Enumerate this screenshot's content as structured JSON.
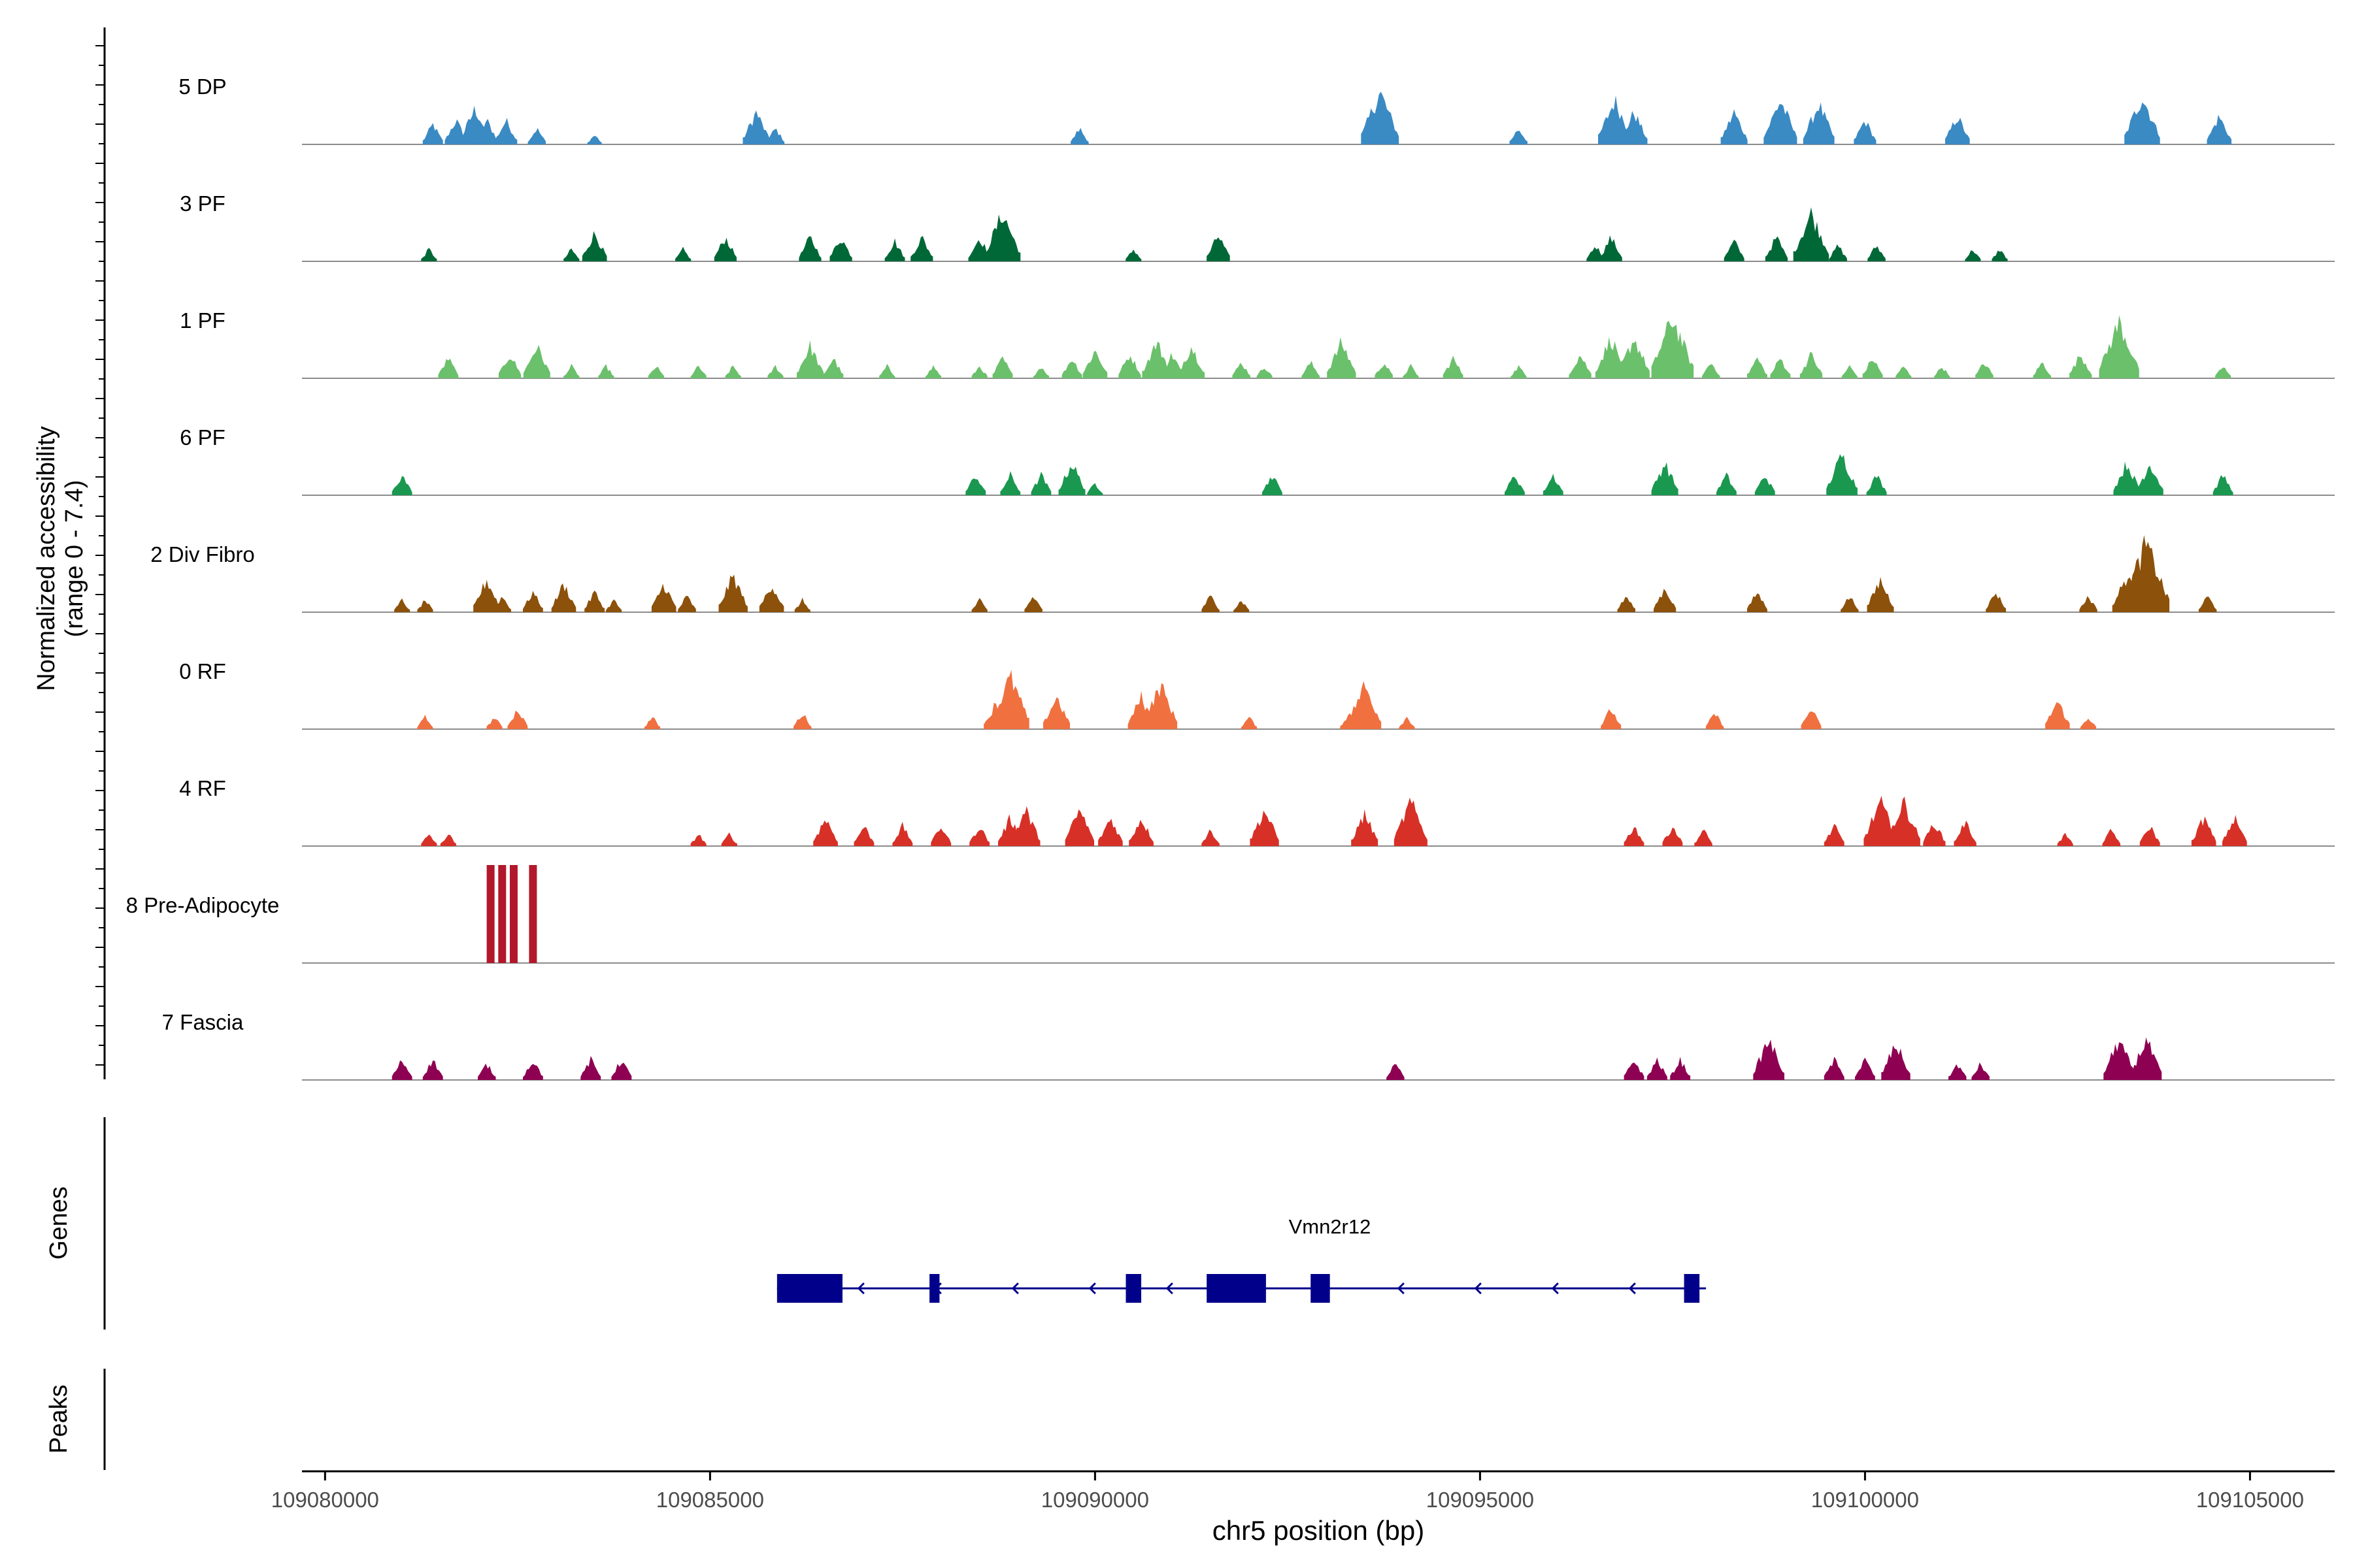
{
  "chart_data": {
    "type": "area",
    "title": "",
    "ylabel_line1": "Normalized accessibility",
    "ylabel_line2": "(range 0 - 7.4)",
    "xlabel": "chr5 position (bp)",
    "xlim": [
      109079700,
      109106100
    ],
    "x_ticks": [
      109080000,
      109085000,
      109090000,
      109095000,
      109100000,
      109105000
    ],
    "x_tick_labels": [
      "109080000",
      "109085000",
      "109090000",
      "109095000",
      "109100000",
      "109105000"
    ],
    "y_range": [
      0,
      7.4
    ],
    "tracks": [
      {
        "name": "5 DP",
        "color": "#3A8AC4",
        "peaks": [
          [
            109081400,
            0.25
          ],
          [
            109081700,
            0.3
          ],
          [
            109081950,
            0.45
          ],
          [
            109082100,
            0.3
          ],
          [
            109082350,
            0.3
          ],
          [
            109082750,
            0.2
          ],
          [
            109083500,
            0.12
          ],
          [
            109085600,
            0.4
          ],
          [
            109085850,
            0.2
          ],
          [
            109089800,
            0.2
          ],
          [
            109093700,
            0.65
          ],
          [
            109095500,
            0.2
          ],
          [
            109096750,
            0.55
          ],
          [
            109097000,
            0.4
          ],
          [
            109098300,
            0.4
          ],
          [
            109098900,
            0.55
          ],
          [
            109099400,
            0.5
          ],
          [
            109100000,
            0.3
          ],
          [
            109101200,
            0.35
          ],
          [
            109103600,
            0.6
          ],
          [
            109104600,
            0.35
          ]
        ]
      },
      {
        "name": "3 PF",
        "color": "#006837",
        "peaks": [
          [
            109081350,
            0.15
          ],
          [
            109083200,
            0.15
          ],
          [
            109083500,
            0.35
          ],
          [
            109084650,
            0.15
          ],
          [
            109085200,
            0.3
          ],
          [
            109086300,
            0.3
          ],
          [
            109086700,
            0.3
          ],
          [
            109087400,
            0.25
          ],
          [
            109087750,
            0.3
          ],
          [
            109088500,
            0.3
          ],
          [
            109088800,
            0.6
          ],
          [
            109090500,
            0.15
          ],
          [
            109091600,
            0.32
          ],
          [
            109096500,
            0.2
          ],
          [
            109096700,
            0.3
          ],
          [
            109098300,
            0.25
          ],
          [
            109098850,
            0.3
          ],
          [
            109099300,
            0.6
          ],
          [
            109099650,
            0.2
          ],
          [
            109100150,
            0.2
          ],
          [
            109101400,
            0.15
          ],
          [
            109101750,
            0.15
          ]
        ]
      },
      {
        "name": "1 PF",
        "color": "#6BC06B",
        "peaks": [
          [
            109081600,
            0.25
          ],
          [
            109082400,
            0.3
          ],
          [
            109082750,
            0.4
          ],
          [
            109083200,
            0.15
          ],
          [
            109083650,
            0.15
          ],
          [
            109084300,
            0.15
          ],
          [
            109084850,
            0.15
          ],
          [
            109085300,
            0.15
          ],
          [
            109085850,
            0.15
          ],
          [
            109086300,
            0.4
          ],
          [
            109086600,
            0.25
          ],
          [
            109087300,
            0.15
          ],
          [
            109087900,
            0.15
          ],
          [
            109088500,
            0.15
          ],
          [
            109088800,
            0.25
          ],
          [
            109089300,
            0.15
          ],
          [
            109089700,
            0.25
          ],
          [
            109090000,
            0.35
          ],
          [
            109090450,
            0.3
          ],
          [
            109090800,
            0.45
          ],
          [
            109091000,
            0.3
          ],
          [
            109091250,
            0.4
          ],
          [
            109091900,
            0.2
          ],
          [
            109092200,
            0.15
          ],
          [
            109092800,
            0.2
          ],
          [
            109093200,
            0.45
          ],
          [
            109093750,
            0.2
          ],
          [
            109094100,
            0.15
          ],
          [
            109094650,
            0.25
          ],
          [
            109095500,
            0.15
          ],
          [
            109096300,
            0.3
          ],
          [
            109096700,
            0.5
          ],
          [
            109097000,
            0.5
          ],
          [
            109097500,
            0.75
          ],
          [
            109098000,
            0.2
          ],
          [
            109098600,
            0.25
          ],
          [
            109098900,
            0.25
          ],
          [
            109099300,
            0.3
          ],
          [
            109099800,
            0.15
          ],
          [
            109100100,
            0.25
          ],
          [
            109100500,
            0.15
          ],
          [
            109101000,
            0.15
          ],
          [
            109101550,
            0.2
          ],
          [
            109102300,
            0.2
          ],
          [
            109102800,
            0.3
          ],
          [
            109103300,
            0.7
          ],
          [
            109104650,
            0.15
          ]
        ]
      },
      {
        "name": "6 PF",
        "color": "#1A9850",
        "peaks": [
          [
            109081000,
            0.25
          ],
          [
            109088450,
            0.25
          ],
          [
            109088900,
            0.25
          ],
          [
            109089300,
            0.25
          ],
          [
            109089700,
            0.4
          ],
          [
            109090000,
            0.15
          ],
          [
            109092300,
            0.25
          ],
          [
            109095450,
            0.25
          ],
          [
            109095950,
            0.25
          ],
          [
            109097400,
            0.4
          ],
          [
            109098200,
            0.25
          ],
          [
            109098700,
            0.25
          ],
          [
            109099700,
            0.5
          ],
          [
            109100150,
            0.25
          ],
          [
            109103400,
            0.4
          ],
          [
            109103700,
            0.4
          ],
          [
            109104650,
            0.25
          ]
        ]
      },
      {
        "name": "2 Div Fibro",
        "color": "#8C510A",
        "peaks": [
          [
            109081000,
            0.15
          ],
          [
            109081300,
            0.15
          ],
          [
            109082100,
            0.4
          ],
          [
            109082300,
            0.2
          ],
          [
            109082700,
            0.25
          ],
          [
            109083100,
            0.35
          ],
          [
            109083500,
            0.25
          ],
          [
            109083750,
            0.15
          ],
          [
            109084400,
            0.35
          ],
          [
            109084700,
            0.2
          ],
          [
            109085300,
            0.45
          ],
          [
            109085800,
            0.35
          ],
          [
            109086200,
            0.15
          ],
          [
            109088500,
            0.15
          ],
          [
            109089200,
            0.2
          ],
          [
            109091500,
            0.2
          ],
          [
            109091900,
            0.15
          ],
          [
            109096900,
            0.2
          ],
          [
            109097400,
            0.3
          ],
          [
            109098600,
            0.25
          ],
          [
            109099800,
            0.2
          ],
          [
            109100200,
            0.4
          ],
          [
            109101700,
            0.25
          ],
          [
            109102900,
            0.2
          ],
          [
            109103400,
            0.45
          ],
          [
            109103650,
            0.85
          ],
          [
            109104450,
            0.2
          ]
        ]
      },
      {
        "name": "0 RF",
        "color": "#F07040",
        "peaks": [
          [
            109081300,
            0.15
          ],
          [
            109082200,
            0.15
          ],
          [
            109082500,
            0.25
          ],
          [
            109084250,
            0.15
          ],
          [
            109086200,
            0.2
          ],
          [
            109088700,
            0.3
          ],
          [
            109088900,
            0.65
          ],
          [
            109089500,
            0.4
          ],
          [
            109090600,
            0.4
          ],
          [
            109090850,
            0.55
          ],
          [
            109092000,
            0.15
          ],
          [
            109093300,
            0.2
          ],
          [
            109093500,
            0.55
          ],
          [
            109094050,
            0.15
          ],
          [
            109096700,
            0.25
          ],
          [
            109098050,
            0.2
          ],
          [
            109099300,
            0.25
          ],
          [
            109102500,
            0.35
          ],
          [
            109102900,
            0.15
          ]
        ]
      },
      {
        "name": "4 RF",
        "color": "#D73027",
        "peaks": [
          [
            109081350,
            0.15
          ],
          [
            109081600,
            0.15
          ],
          [
            109084850,
            0.15
          ],
          [
            109085250,
            0.15
          ],
          [
            109086500,
            0.35
          ],
          [
            109087000,
            0.25
          ],
          [
            109087500,
            0.25
          ],
          [
            109088000,
            0.25
          ],
          [
            109088500,
            0.25
          ],
          [
            109088900,
            0.35
          ],
          [
            109089100,
            0.45
          ],
          [
            109089800,
            0.45
          ],
          [
            109090200,
            0.35
          ],
          [
            109090600,
            0.35
          ],
          [
            109091500,
            0.2
          ],
          [
            109092200,
            0.45
          ],
          [
            109093500,
            0.4
          ],
          [
            109094100,
            0.55
          ],
          [
            109097000,
            0.25
          ],
          [
            109097500,
            0.25
          ],
          [
            109097900,
            0.2
          ],
          [
            109099600,
            0.25
          ],
          [
            109100200,
            0.55
          ],
          [
            109100500,
            0.55
          ],
          [
            109100900,
            0.3
          ],
          [
            109101300,
            0.3
          ],
          [
            109102600,
            0.15
          ],
          [
            109103200,
            0.2
          ],
          [
            109103700,
            0.25
          ],
          [
            109104400,
            0.35
          ],
          [
            109104800,
            0.35
          ]
        ]
      },
      {
        "name": "8 Pre-Adipocyte",
        "color": "#B2182B",
        "peaks": [
          [
            109082150,
            1.0
          ],
          [
            109082300,
            1.0
          ],
          [
            109082450,
            1.0
          ],
          [
            109082700,
            1.0
          ]
        ]
      },
      {
        "name": "7 Fascia",
        "color": "#8E0152",
        "peaks": [
          [
            109081000,
            0.25
          ],
          [
            109081400,
            0.25
          ],
          [
            109082100,
            0.2
          ],
          [
            109082700,
            0.25
          ],
          [
            109083450,
            0.25
          ],
          [
            109083850,
            0.25
          ],
          [
            109093900,
            0.2
          ],
          [
            109097000,
            0.25
          ],
          [
            109097300,
            0.25
          ],
          [
            109097600,
            0.25
          ],
          [
            109098750,
            0.5
          ],
          [
            109099600,
            0.25
          ],
          [
            109100000,
            0.25
          ],
          [
            109100400,
            0.45
          ],
          [
            109101200,
            0.2
          ],
          [
            109101500,
            0.2
          ],
          [
            109103300,
            0.5
          ],
          [
            109103650,
            0.5
          ]
        ]
      }
    ],
    "genes_label": "Genes",
    "peaks_label": "Peaks",
    "gene": {
      "name": "Vmn2r12",
      "strand": "-",
      "start": 109085870,
      "end": 109097850,
      "exons": [
        [
          109085870,
          109086720
        ],
        [
          109087850,
          109087980
        ],
        [
          109090400,
          109090600
        ],
        [
          109091450,
          109092220
        ],
        [
          109092800,
          109093050
        ],
        [
          109097650,
          109097850
        ]
      ]
    }
  }
}
